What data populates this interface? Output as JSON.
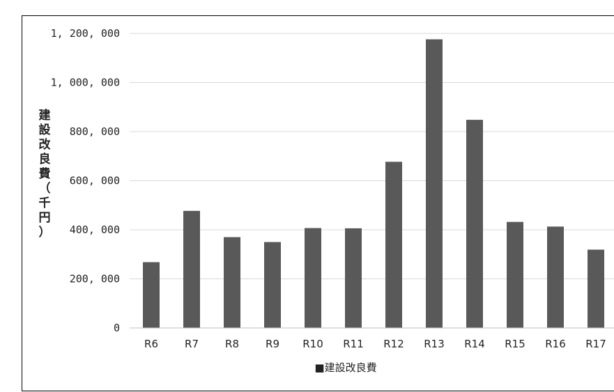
{
  "chart_data": {
    "type": "bar",
    "title": "",
    "xlabel": "",
    "ylabel": "建設改良費（千円）",
    "ylim": [
      0,
      1200000
    ],
    "yticks": [
      0,
      200000,
      400000,
      600000,
      800000,
      1000000,
      1200000
    ],
    "ytick_labels": [
      "0",
      "200, 000",
      "400, 000",
      "600, 000",
      "800, 000",
      "1, 000, 000",
      "1, 200, 000"
    ],
    "categories": [
      "R6",
      "R7",
      "R8",
      "R9",
      "R10",
      "R11",
      "R12",
      "R13",
      "R14",
      "R15",
      "R16",
      "R17"
    ],
    "series": [
      {
        "name": "建設改良費",
        "color": "#595959",
        "values": [
          268000,
          477000,
          370000,
          350000,
          407000,
          406000,
          677000,
          1176000,
          848000,
          432000,
          413000,
          319000
        ]
      }
    ],
    "legend": {
      "position": "bottom",
      "marker": "■",
      "label": "建設改良費"
    },
    "grid": true,
    "gridColor": "#d9d9d9"
  }
}
